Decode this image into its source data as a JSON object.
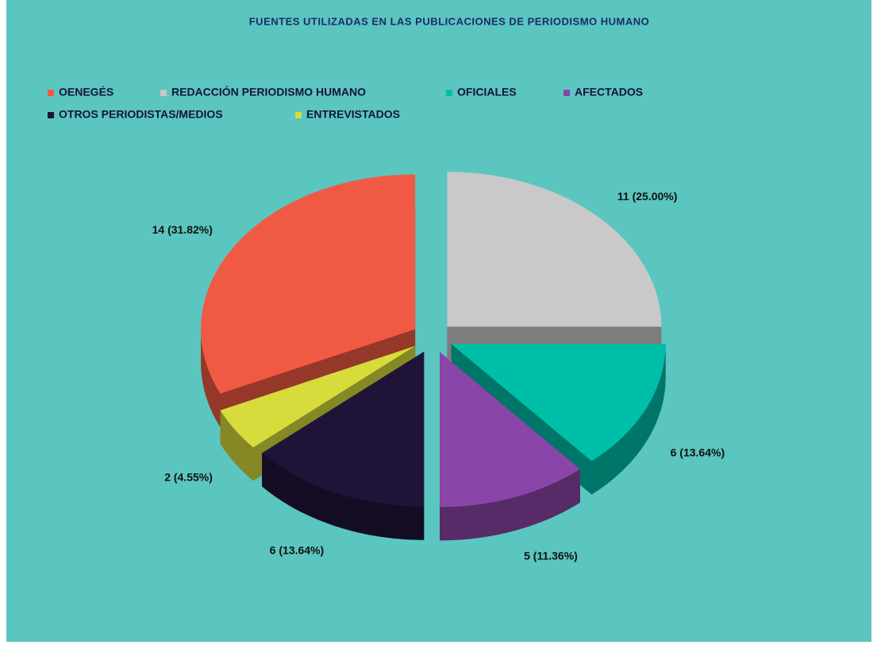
{
  "chart_data": {
    "type": "pie3d",
    "title": "FUENTES UTILIZADAS EN LAS PUBLICACIONES DE PERIODISMO HUMANO",
    "categories": [
      "OENEGÉS",
      "REDACCIÓN PERIODISMO HUMANO",
      "OFICIALES",
      "AFECTADOS",
      "OTROS PERIODISTAS/MEDIOS",
      "ENTREVISTADOS"
    ],
    "values": [
      14,
      11,
      6,
      5,
      6,
      2
    ],
    "value_labels": [
      "14 (31.82%)",
      "11 (25.00%)",
      "6 (13.64%)",
      "5 (11.36%)",
      "6 (13.64%)",
      "2 (4.55%)"
    ],
    "colors": [
      "#f05a44",
      "#c9c9c9",
      "#00bfa9",
      "#8a45a8",
      "#1f1438",
      "#d5dc3b"
    ],
    "legend": "top"
  }
}
